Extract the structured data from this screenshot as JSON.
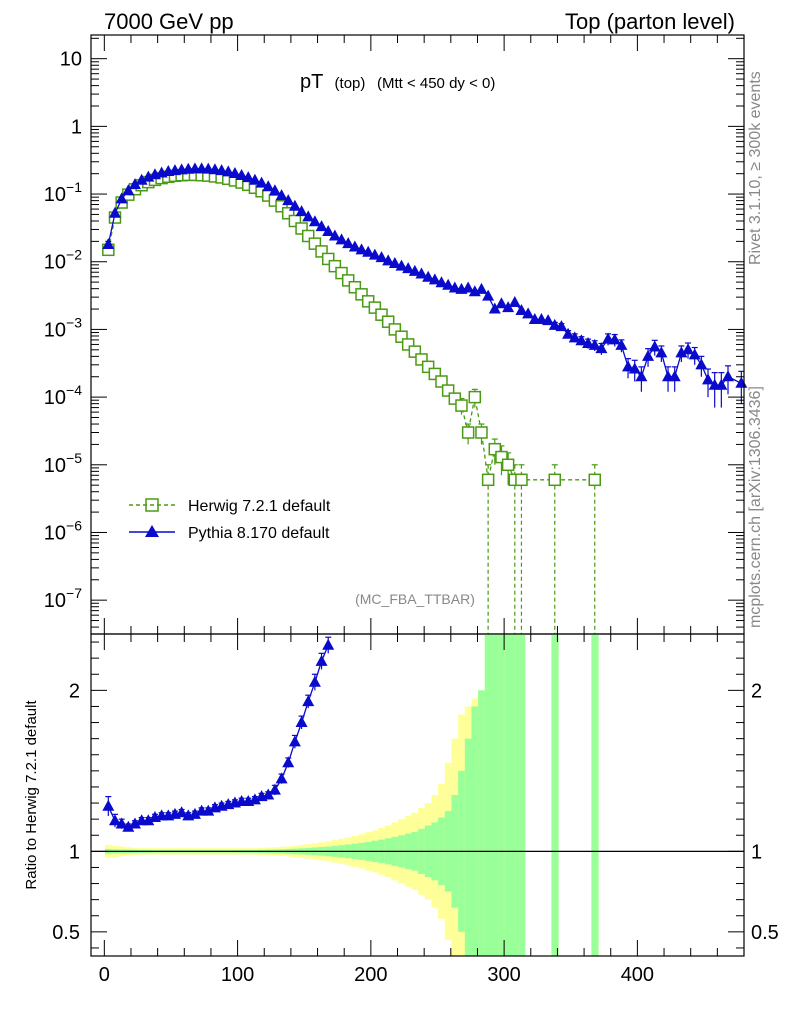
{
  "header": {
    "left": "7000 GeV pp",
    "right": "Top (parton level)"
  },
  "side_labels": {
    "rivet": "Rivet 3.1.10, ≥ 300k events",
    "mcplots": "mcplots.cern.ch [arXiv:1306.3436]"
  },
  "chart_data": [
    {
      "id": "main",
      "type": "line",
      "title_main": "pT",
      "title_sub": "(top)",
      "title_cut": "(Mtt < 450 dy < 0)",
      "watermark": "(MC_FBA_TTBAR)",
      "xlim": [
        -10,
        480
      ],
      "ylim_log10": [
        -7.5,
        1.35
      ],
      "yscale": "log",
      "ytick_labels": [
        {
          "exp": 1,
          "label": "10",
          "sup": ""
        },
        {
          "exp": 0,
          "label": "1",
          "sup": ""
        },
        {
          "exp": -1,
          "label": "10",
          "sup": "−1"
        },
        {
          "exp": -2,
          "label": "10",
          "sup": "−2"
        },
        {
          "exp": -3,
          "label": "10",
          "sup": "−3"
        },
        {
          "exp": -4,
          "label": "10",
          "sup": "−4"
        },
        {
          "exp": -5,
          "label": "10",
          "sup": "−5"
        },
        {
          "exp": -6,
          "label": "10",
          "sup": "−6"
        },
        {
          "exp": -7,
          "label": "10",
          "sup": "−7"
        }
      ],
      "legend": [
        {
          "name": "Herwig 7.2.1 default",
          "color": "#4a9a14",
          "marker": "square-open",
          "dash": true
        },
        {
          "name": "Pythia 8.170 default",
          "color": "#0a0acc",
          "marker": "triangle",
          "dash": false
        }
      ],
      "series": [
        {
          "name": "Herwig 7.2.1 default",
          "color": "#4a9a14",
          "x": [
            3,
            8,
            13,
            18,
            23,
            28,
            33,
            38,
            43,
            48,
            53,
            58,
            63,
            68,
            73,
            78,
            83,
            88,
            93,
            98,
            103,
            108,
            113,
            118,
            123,
            128,
            133,
            138,
            143,
            148,
            153,
            158,
            163,
            168,
            173,
            178,
            183,
            188,
            193,
            198,
            203,
            208,
            213,
            218,
            223,
            228,
            233,
            238,
            243,
            248,
            253,
            258,
            263,
            268,
            273,
            278,
            283,
            288,
            293,
            298,
            303,
            308,
            313,
            338,
            368
          ],
          "y": [
            0.015,
            0.045,
            0.075,
            0.098,
            0.118,
            0.135,
            0.15,
            0.162,
            0.172,
            0.18,
            0.186,
            0.19,
            0.192,
            0.192,
            0.19,
            0.187,
            0.182,
            0.176,
            0.168,
            0.159,
            0.148,
            0.137,
            0.124,
            0.11,
            0.095,
            0.08,
            0.066,
            0.052,
            0.04,
            0.031,
            0.024,
            0.0185,
            0.0142,
            0.011,
            0.0086,
            0.0068,
            0.0053,
            0.0042,
            0.0033,
            0.0026,
            0.0021,
            0.00165,
            0.0013,
            0.001,
            0.00078,
            0.0006,
            0.00047,
            0.00036,
            0.00028,
            0.00022,
            0.00017,
            0.000125,
            9.5e-05,
            7.5e-05,
            3e-05,
            0.0001,
            3e-05,
            6e-06,
            1.7e-05,
            1.3e-05,
            1e-05,
            6e-06,
            6e-06,
            6e-06,
            6e-06
          ],
          "err_up": [
            0.0011,
            0.002,
            0.003,
            0.003,
            0.003,
            0.003,
            0.003,
            0.003,
            0.003,
            0.003,
            0.003,
            0.003,
            0.003,
            0.003,
            0.003,
            0.003,
            0.003,
            0.003,
            0.003,
            0.003,
            0.003,
            0.003,
            0.003,
            0.002,
            0.002,
            0.002,
            0.0015,
            0.0012,
            0.001,
            0.0008,
            0.0006,
            0.0005,
            0.0004,
            0.0003,
            0.0003,
            0.0002,
            0.0002,
            0.00015,
            0.00013,
            0.00011,
            0.0001,
            8e-05,
            7e-05,
            6e-05,
            5e-05,
            4e-05,
            3.5e-05,
            3e-05,
            2.5e-05,
            2e-05,
            1.8e-05,
            1.5e-05,
            1.3e-05,
            2e-05,
            1e-05,
            3e-05,
            1e-05,
            4e-06,
            7e-06,
            6e-06,
            5e-06,
            4e-06,
            4e-06,
            4e-06,
            4e-06
          ]
        },
        {
          "name": "Pythia 8.170 default",
          "color": "#0a0acc",
          "x": [
            3,
            8,
            13,
            18,
            23,
            28,
            33,
            38,
            43,
            48,
            53,
            58,
            63,
            68,
            73,
            78,
            83,
            88,
            93,
            98,
            103,
            108,
            113,
            118,
            123,
            128,
            133,
            138,
            143,
            148,
            153,
            158,
            163,
            168,
            173,
            178,
            183,
            188,
            193,
            198,
            203,
            208,
            213,
            218,
            223,
            228,
            233,
            238,
            243,
            248,
            253,
            258,
            263,
            268,
            273,
            278,
            283,
            288,
            293,
            298,
            303,
            308,
            313,
            318,
            323,
            328,
            333,
            338,
            343,
            348,
            353,
            358,
            363,
            368,
            373,
            378,
            383,
            388,
            393,
            398,
            403,
            408,
            413,
            418,
            423,
            428,
            433,
            438,
            443,
            448,
            453,
            458,
            463,
            468,
            478
          ],
          "y": [
            0.018,
            0.052,
            0.085,
            0.112,
            0.138,
            0.16,
            0.178,
            0.193,
            0.205,
            0.215,
            0.222,
            0.228,
            0.233,
            0.236,
            0.236,
            0.234,
            0.229,
            0.222,
            0.213,
            0.201,
            0.188,
            0.175,
            0.16,
            0.145,
            0.128,
            0.112,
            0.095,
            0.08,
            0.066,
            0.055,
            0.046,
            0.039,
            0.033,
            0.028,
            0.024,
            0.021,
            0.0185,
            0.0165,
            0.015,
            0.0138,
            0.0125,
            0.0115,
            0.0103,
            0.0094,
            0.0086,
            0.0079,
            0.0072,
            0.0066,
            0.0059,
            0.0054,
            0.0049,
            0.0045,
            0.0041,
            0.0039,
            0.0041,
            0.0036,
            0.0039,
            0.0031,
            0.002,
            0.0024,
            0.0021,
            0.0025,
            0.0019,
            0.0017,
            0.0014,
            0.0014,
            0.00135,
            0.00115,
            0.0011,
            0.00085,
            0.00075,
            0.00068,
            0.00062,
            0.00058,
            0.00052,
            0.00072,
            0.0007,
            0.00058,
            0.00028,
            0.00026,
            0.0002,
            0.0004,
            0.00055,
            0.00045,
            0.0002,
            0.0002,
            0.00045,
            0.0005,
            0.00042,
            0.0003,
            0.00018,
            0.00015,
            0.00015,
            0.0002,
            0.00016
          ],
          "err_up": [
            0.002,
            0.003,
            0.004,
            0.004,
            0.004,
            0.004,
            0.004,
            0.004,
            0.004,
            0.004,
            0.004,
            0.004,
            0.004,
            0.004,
            0.004,
            0.004,
            0.004,
            0.004,
            0.004,
            0.004,
            0.004,
            0.004,
            0.004,
            0.003,
            0.003,
            0.003,
            0.003,
            0.002,
            0.002,
            0.002,
            0.0015,
            0.0012,
            0.001,
            0.0009,
            0.0008,
            0.0007,
            0.0006,
            0.0005,
            0.0005,
            0.00045,
            0.0004,
            0.0004,
            0.00035,
            0.0003,
            0.0003,
            0.0003,
            0.00028,
            0.00026,
            0.00024,
            0.00022,
            0.0002,
            0.0002,
            0.0002,
            0.0002,
            0.0002,
            0.0002,
            0.0002,
            0.00018,
            0.00015,
            0.00016,
            0.00015,
            0.00016,
            0.00015,
            0.00014,
            0.00013,
            0.00013,
            0.00013,
            0.00012,
            0.00012,
            0.00011,
            0.00011,
            0.0001,
            0.0001,
            0.0001,
            0.0001,
            0.00014,
            0.00014,
            0.00012,
            9e-05,
            9e-05,
            8e-05,
            0.00012,
            0.00014,
            0.00012,
            8e-05,
            8e-05,
            0.00012,
            0.00013,
            0.00012,
            0.0001,
            8e-05,
            8e-05,
            8e-05,
            9e-05,
            8e-05
          ]
        }
      ]
    },
    {
      "id": "ratio",
      "type": "line",
      "ylabel": "Ratio to Herwig 7.2.1 default",
      "xlim": [
        -10,
        480
      ],
      "ylim": [
        0.35,
        2.35
      ],
      "xtick_labels": [
        {
          "value": 0,
          "label": "0"
        },
        {
          "value": 100,
          "label": "100"
        },
        {
          "value": 200,
          "label": "200"
        },
        {
          "value": 300,
          "label": "300"
        },
        {
          "value": 400,
          "label": "400"
        }
      ],
      "ytick_labels": [
        {
          "value": 0.5,
          "label": "0.5"
        },
        {
          "value": 1,
          "label": "1"
        },
        {
          "value": 2,
          "label": "2"
        }
      ],
      "band_colors": {
        "stat": "#99ff99",
        "total": "#ffff99"
      },
      "bands": {
        "x": [
          3,
          8,
          13,
          18,
          23,
          28,
          33,
          38,
          43,
          48,
          53,
          58,
          63,
          68,
          73,
          78,
          83,
          88,
          93,
          98,
          103,
          108,
          113,
          118,
          123,
          128,
          133,
          138,
          143,
          148,
          153,
          158,
          163,
          168,
          173,
          178,
          183,
          188,
          193,
          198,
          203,
          208,
          213,
          218,
          223,
          228,
          233,
          238,
          243,
          248,
          253,
          258,
          263,
          268,
          273,
          278,
          283,
          288,
          293,
          298,
          303,
          308,
          313,
          338,
          368
        ],
        "stat": [
          0.015,
          0.013,
          0.012,
          0.011,
          0.01,
          0.009,
          0.009,
          0.008,
          0.008,
          0.008,
          0.008,
          0.008,
          0.008,
          0.008,
          0.008,
          0.008,
          0.008,
          0.008,
          0.008,
          0.008,
          0.009,
          0.009,
          0.009,
          0.01,
          0.011,
          0.012,
          0.013,
          0.015,
          0.017,
          0.019,
          0.021,
          0.024,
          0.027,
          0.03,
          0.034,
          0.038,
          0.043,
          0.048,
          0.053,
          0.059,
          0.066,
          0.073,
          0.081,
          0.09,
          0.1,
          0.11,
          0.12,
          0.14,
          0.16,
          0.18,
          0.21,
          0.25,
          0.35,
          0.5,
          0.7,
          0.9,
          1.0,
          1.5,
          1.5,
          1.5,
          1.5,
          1.5,
          1.5,
          1.5,
          1.5
        ],
        "total": [
          0.04,
          0.035,
          0.03,
          0.025,
          0.022,
          0.02,
          0.02,
          0.02,
          0.02,
          0.02,
          0.02,
          0.02,
          0.02,
          0.02,
          0.02,
          0.02,
          0.02,
          0.02,
          0.02,
          0.02,
          0.02,
          0.02,
          0.02,
          0.022,
          0.024,
          0.026,
          0.028,
          0.031,
          0.035,
          0.04,
          0.045,
          0.05,
          0.056,
          0.062,
          0.07,
          0.078,
          0.087,
          0.096,
          0.106,
          0.12,
          0.13,
          0.145,
          0.16,
          0.18,
          0.2,
          0.22,
          0.24,
          0.27,
          0.3,
          0.35,
          0.42,
          0.55,
          0.7,
          0.85,
          0.9,
          0.95,
          1.0,
          1.5,
          1.5,
          1.5,
          1.5,
          1.5,
          1.5,
          1.5,
          1.5
        ]
      },
      "series": [
        {
          "name": "Pythia 8.170 default / Herwig 7.2.1 default",
          "color": "#0a0acc",
          "x": [
            3,
            8,
            13,
            18,
            23,
            28,
            33,
            38,
            43,
            48,
            53,
            58,
            63,
            68,
            73,
            78,
            83,
            88,
            93,
            98,
            103,
            108,
            113,
            118,
            123,
            128,
            133,
            138,
            143,
            148,
            153,
            158,
            163,
            168
          ],
          "y": [
            1.28,
            1.19,
            1.17,
            1.15,
            1.17,
            1.19,
            1.19,
            1.21,
            1.22,
            1.22,
            1.23,
            1.24,
            1.22,
            1.23,
            1.25,
            1.25,
            1.27,
            1.28,
            1.29,
            1.3,
            1.31,
            1.31,
            1.32,
            1.34,
            1.35,
            1.38,
            1.45,
            1.55,
            1.68,
            1.8,
            1.93,
            2.05,
            2.18,
            2.28
          ],
          "err": [
            0.06,
            0.04,
            0.03,
            0.02,
            0.02,
            0.02,
            0.02,
            0.02,
            0.02,
            0.02,
            0.02,
            0.02,
            0.02,
            0.02,
            0.02,
            0.02,
            0.02,
            0.02,
            0.02,
            0.02,
            0.02,
            0.02,
            0.02,
            0.02,
            0.02,
            0.03,
            0.03,
            0.03,
            0.04,
            0.04,
            0.04,
            0.05,
            0.05,
            0.05
          ]
        }
      ]
    }
  ]
}
